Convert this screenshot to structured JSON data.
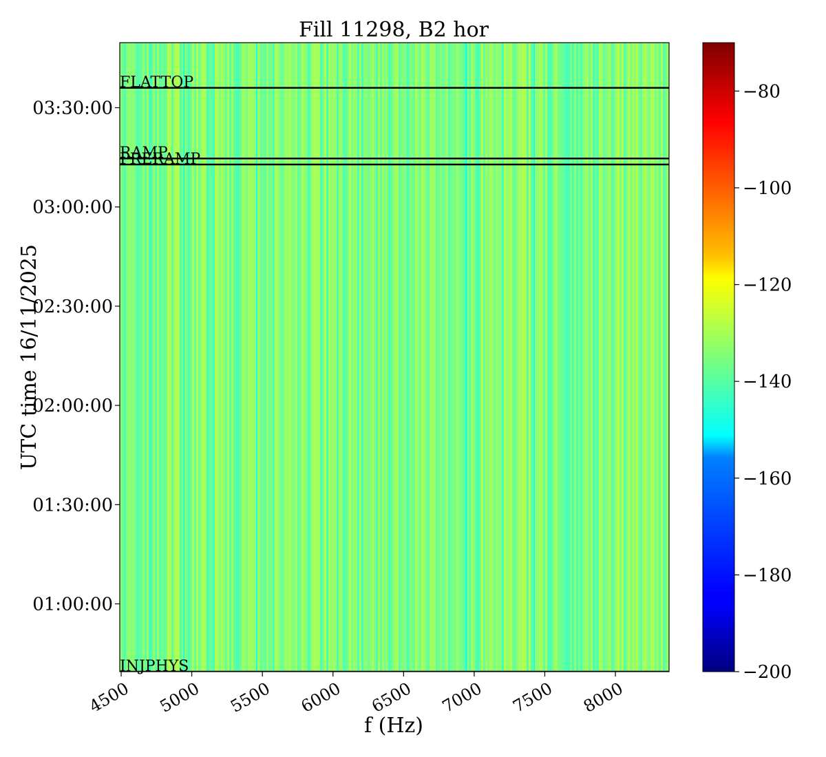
{
  "chart_data": {
    "type": "heatmap",
    "title": "Fill 11298, B2 hor",
    "xlabel": "f (Hz)",
    "ylabel": "UTC time 16/11/2025",
    "xlim": [
      4490,
      8380
    ],
    "ylim": [
      "00:39:30",
      "03:49:40"
    ],
    "x_ticks": [
      {
        "value": 4500,
        "label": "4500"
      },
      {
        "value": 5000,
        "label": "5000"
      },
      {
        "value": 5500,
        "label": "5500"
      },
      {
        "value": 6000,
        "label": "6000"
      },
      {
        "value": 6500,
        "label": "6500"
      },
      {
        "value": 7000,
        "label": "7000"
      },
      {
        "value": 7500,
        "label": "7500"
      },
      {
        "value": 8000,
        "label": "8000"
      }
    ],
    "y_ticks": [
      {
        "value": "01:00:00",
        "label": "01:00:00"
      },
      {
        "value": "01:30:00",
        "label": "01:30:00"
      },
      {
        "value": "02:00:00",
        "label": "02:00:00"
      },
      {
        "value": "02:30:00",
        "label": "02:30:00"
      },
      {
        "value": "03:00:00",
        "label": "03:00:00"
      },
      {
        "value": "03:30:00",
        "label": "03:30:00"
      }
    ],
    "colorbar": {
      "colormap": "jet",
      "range": [
        -200,
        -70
      ],
      "ticks": [
        {
          "value": -200,
          "label": "−200"
        },
        {
          "value": -180,
          "label": "−180"
        },
        {
          "value": -160,
          "label": "−160"
        },
        {
          "value": -140,
          "label": "−140"
        },
        {
          "value": -120,
          "label": "−120"
        },
        {
          "value": -100,
          "label": "−100"
        },
        {
          "value": -80,
          "label": "−80"
        }
      ]
    },
    "typical_value_range": [
      -146,
      -128
    ],
    "dark_line_frequencies": [
      4945,
      5460,
      6945,
      7425
    ],
    "annotations": [
      {
        "label": "INJPHYS",
        "time": "00:39:30"
      },
      {
        "label": "PRERAMP",
        "time": "03:12:50"
      },
      {
        "label": "RAMP",
        "time": "03:14:40"
      },
      {
        "label": "FLATTOP",
        "time": "03:36:00"
      }
    ],
    "colors": {
      "marker_line": "#000000",
      "background": "#ffffff"
    }
  }
}
